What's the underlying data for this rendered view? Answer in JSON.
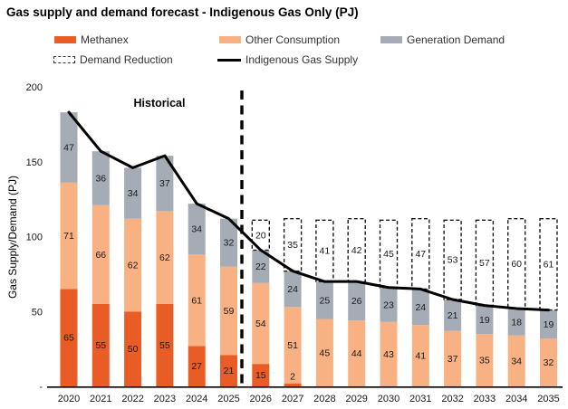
{
  "title": "Gas supply and demand forecast - Indigenous Gas Only (PJ)",
  "legend": {
    "methanex": "Methanex",
    "other_consumption": "Other Consumption",
    "generation_demand": "Generation Demand",
    "demand_reduction": "Demand Reduction",
    "indigenous_gas_supply": "Indigenous Gas Supply"
  },
  "annotations": {
    "historical": "Historical"
  },
  "axes": {
    "y_title": "Gas Supply/Demand (PJ)",
    "y_ticks": [
      {
        "value": 200,
        "label": "200"
      },
      {
        "value": 150,
        "label": "150"
      },
      {
        "value": 100,
        "label": "100"
      },
      {
        "value": 50,
        "label": "50"
      },
      {
        "value": 0,
        "label": "-"
      }
    ]
  },
  "colors": {
    "methanex": "#E95C25",
    "other_consumption": "#F8B182",
    "generation_demand": "#A5ACB5",
    "supply_line": "#000000",
    "label_text": "#1a1a1a"
  },
  "chart_data": {
    "type": "bar",
    "stacked": true,
    "title": "Gas supply and demand forecast - Indigenous Gas Only (PJ)",
    "ylabel": "Gas Supply/Demand (PJ)",
    "ylim": [
      0,
      200
    ],
    "grid": false,
    "legend_position": "top",
    "forecast_start_category": "2026",
    "categories": [
      "2020",
      "2021",
      "2022",
      "2023",
      "2024",
      "2025",
      "2026",
      "2027",
      "2028",
      "2029",
      "2030",
      "2031",
      "2032",
      "2033",
      "2034",
      "2035"
    ],
    "series": [
      {
        "name": "Methanex",
        "style": "solid",
        "values": [
          65,
          55,
          50,
          55,
          27,
          21,
          15,
          2,
          0,
          0,
          0,
          0,
          0,
          0,
          0,
          0
        ]
      },
      {
        "name": "Other Consumption",
        "style": "solid",
        "values": [
          71,
          66,
          62,
          62,
          61,
          59,
          54,
          51,
          45,
          44,
          43,
          41,
          37,
          35,
          34,
          32
        ]
      },
      {
        "name": "Generation Demand",
        "style": "solid",
        "values": [
          47,
          36,
          34,
          37,
          34,
          32,
          22,
          24,
          25,
          26,
          23,
          24,
          21,
          19,
          18,
          19
        ]
      },
      {
        "name": "Demand Reduction",
        "style": "dashed-outline",
        "values": [
          0,
          0,
          0,
          0,
          0,
          0,
          20,
          35,
          41,
          42,
          45,
          47,
          53,
          57,
          60,
          61
        ]
      }
    ],
    "line_series": {
      "name": "Indigenous Gas Supply",
      "values": [
        183,
        157,
        146,
        154,
        122,
        112,
        91,
        77,
        70,
        70,
        66,
        65,
        58,
        54,
        52,
        51
      ]
    }
  }
}
